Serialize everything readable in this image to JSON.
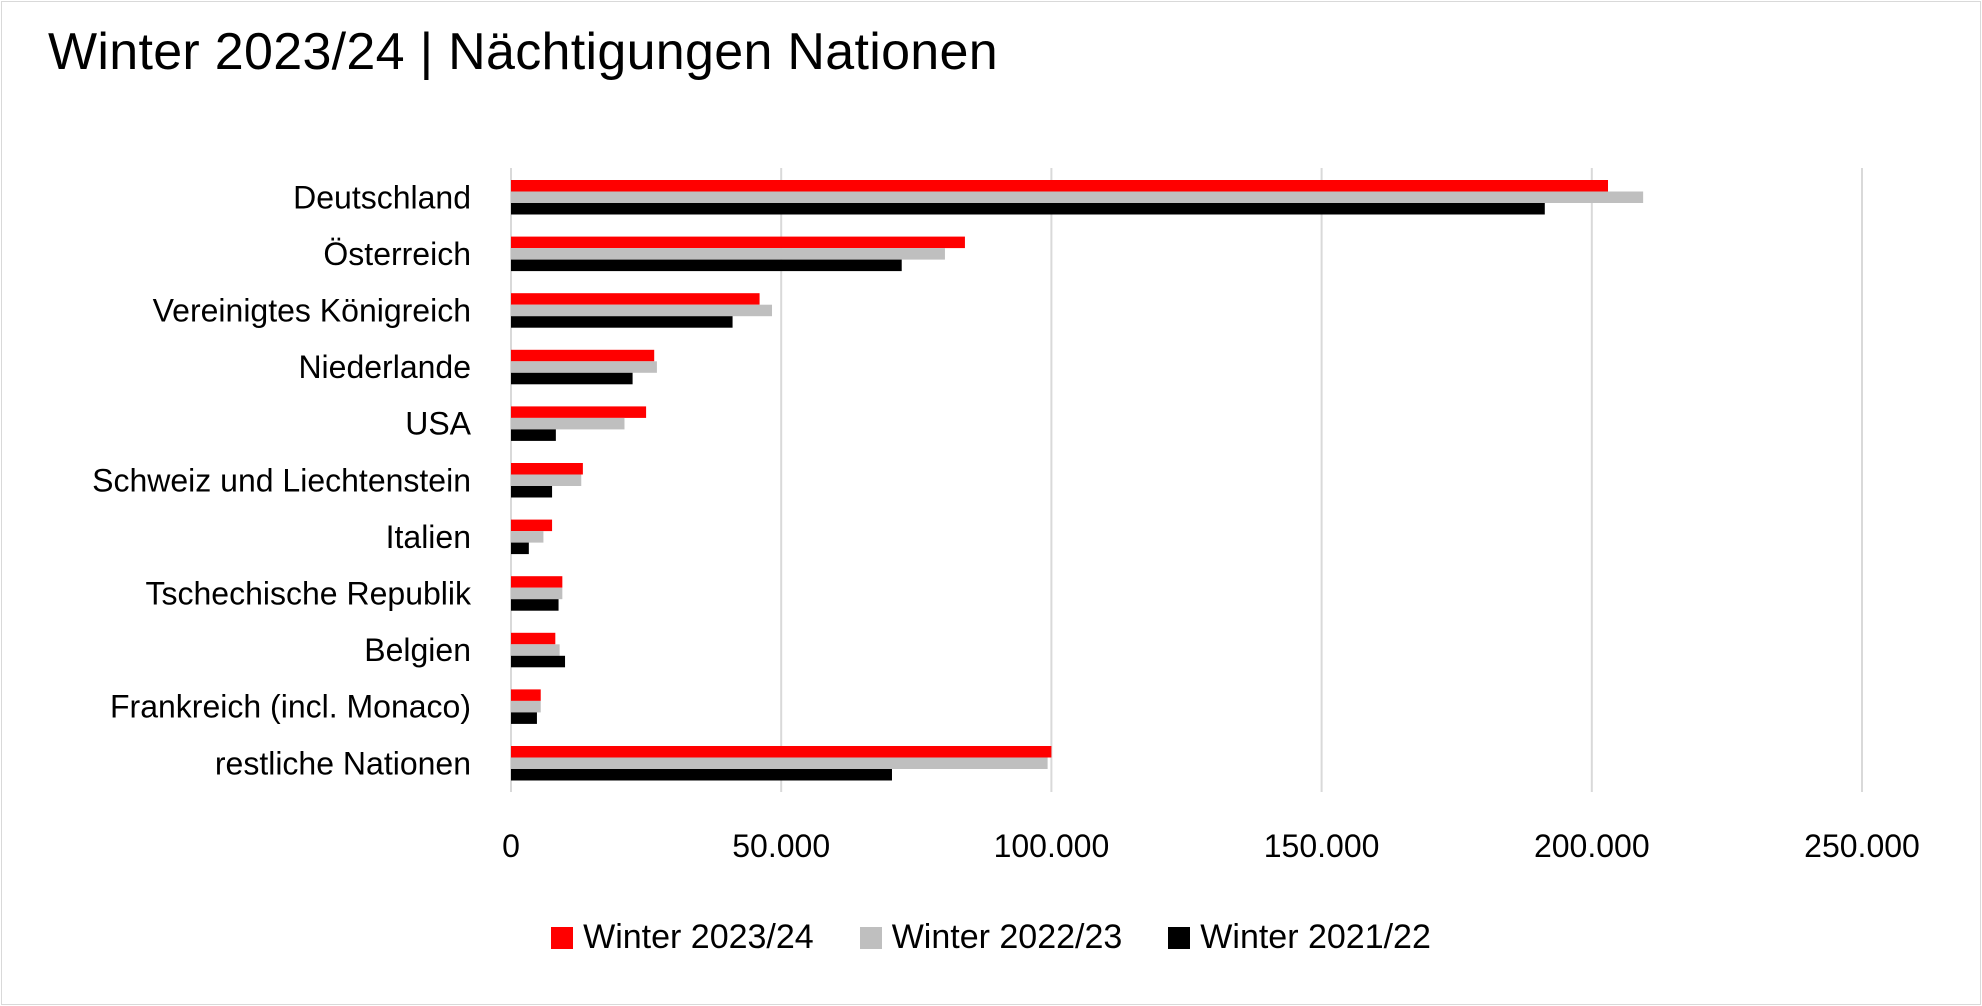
{
  "chart_data": {
    "type": "bar",
    "orientation": "horizontal",
    "title": "Winter 2023/24 | Nächtigungen Nationen",
    "categories": [
      "Deutschland",
      "Österreich",
      "Vereinigtes Königreich",
      "Niederlande",
      "USA",
      "Schweiz und Liechtenstein",
      "Italien",
      "Tschechische Republik",
      "Belgien",
      "Frankreich (incl. Monaco)",
      "restliche Nationen"
    ],
    "series": [
      {
        "name": "Winter 2023/24",
        "color": "#ff0000",
        "values": [
          203000,
          84000,
          46000,
          26500,
          25000,
          13300,
          7600,
          9500,
          8200,
          5500,
          100000
        ]
      },
      {
        "name": "Winter 2022/23",
        "color": "#bfbfbf",
        "values": [
          209500,
          80300,
          48300,
          27000,
          21000,
          13000,
          6000,
          9500,
          9000,
          5500,
          99300
        ]
      },
      {
        "name": "Winter 2021/22",
        "color": "#000000",
        "values": [
          191300,
          72300,
          41000,
          22500,
          8300,
          7600,
          3300,
          8800,
          10000,
          4800,
          70500
        ]
      }
    ],
    "xlim": [
      0,
      250000
    ],
    "x_ticks": [
      0,
      50000,
      100000,
      150000,
      200000,
      250000
    ],
    "x_tick_labels": [
      "0",
      "50.000",
      "100.000",
      "150.000",
      "200.000",
      "250.000"
    ],
    "grid": true,
    "legend_position": "bottom"
  }
}
